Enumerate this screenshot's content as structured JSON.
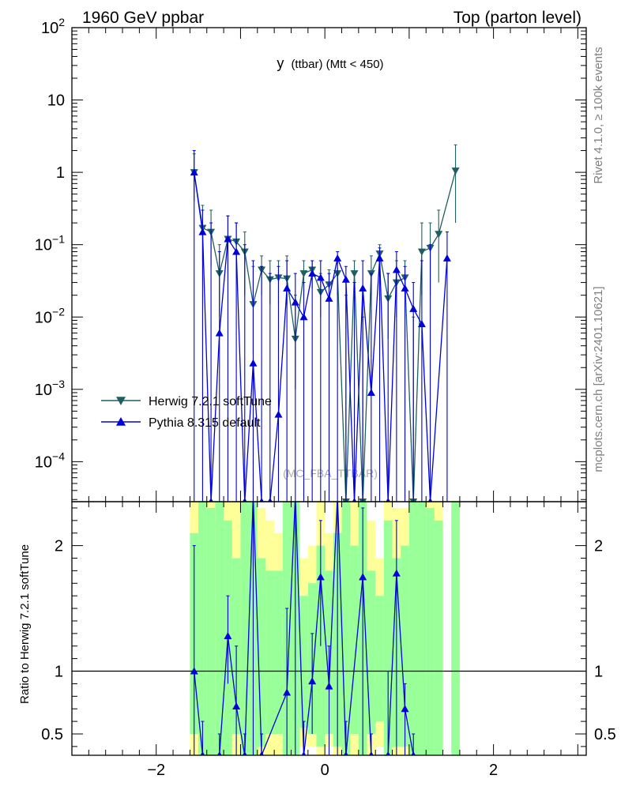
{
  "header": {
    "left": "1960 GeV ppbar",
    "right": "Top (parton level)"
  },
  "side": {
    "rivet": "Rivet 4.1.0, ≥ 100k events",
    "mcplots": "mcplots.cern.ch [arXiv:2401.10621]"
  },
  "colors": {
    "herwig": "#1f5f5f",
    "pythia": "#0000dd",
    "band_yellow": "#ffff99",
    "band_green": "#99ff99"
  },
  "chart_data": [
    {
      "type": "line",
      "name": "main",
      "title": "y (ttbar) (Mtt < 450)",
      "title_main": "y",
      "title_rest": "(ttbar) (Mtt < 450)",
      "watermark": "(MC_FBA_TTBAR)",
      "xlim": [
        -3.0,
        3.1
      ],
      "ylim_log": [
        2.8e-05,
        100
      ],
      "yscale": "log",
      "yticks": [
        {
          "value": 100,
          "base": "10",
          "exp": "2"
        },
        {
          "value": 10,
          "base": "10",
          "exp": ""
        },
        {
          "value": 1,
          "base": "1",
          "exp": ""
        },
        {
          "value": 0.1,
          "base": "10",
          "exp": "−1"
        },
        {
          "value": 0.01,
          "base": "10",
          "exp": "−2"
        },
        {
          "value": 0.001,
          "base": "10",
          "exp": "−3"
        },
        {
          "value": 0.0001,
          "base": "10",
          "exp": "−4"
        }
      ],
      "legend": [
        "Herwig 7.2.1 softTune",
        "Pythia 8.315 default"
      ],
      "legend_position": "lower-left",
      "series": [
        {
          "name": "Herwig 7.2.1 softTune",
          "marker": "triangle-down",
          "points": [
            [
              -1.55,
              1.0,
              1.8,
              0.4
            ],
            [
              -1.45,
              0.17,
              0.35,
              0.06
            ],
            [
              -1.35,
              0.15,
              0.3,
              0.05
            ],
            [
              -1.25,
              0.04,
              0.1,
              0.01
            ],
            [
              -1.15,
              0.12,
              0.25,
              0.04
            ],
            [
              -1.05,
              0.11,
              0.2,
              0.04
            ],
            [
              -0.95,
              0.08,
              0.15,
              0.02
            ],
            [
              -0.85,
              0.015,
              0.05,
              0.003
            ],
            [
              -0.75,
              0.045,
              0.07,
              0.02
            ],
            [
              -0.65,
              0.033,
              0.06,
              0.015
            ],
            [
              -0.55,
              0.035,
              0.06,
              0.015
            ],
            [
              -0.45,
              0.034,
              0.07,
              0.015
            ],
            [
              -0.35,
              0.005,
              0.02,
              0.001
            ],
            [
              -0.25,
              0.04,
              0.06,
              0.02
            ],
            [
              -0.15,
              0.045,
              0.06,
              0.025
            ],
            [
              -0.05,
              0.022,
              0.04,
              0.01
            ],
            [
              0.05,
              0.028,
              0.045,
              0.015
            ],
            [
              0.15,
              0.04,
              0.06,
              0.02
            ],
            [
              0.25,
              2.8e-05,
              0.02,
              2.8e-05
            ],
            [
              0.35,
              0.04,
              0.06,
              0.02
            ],
            [
              0.45,
              2.8e-05,
              0.01,
              2.8e-05
            ],
            [
              0.55,
              0.04,
              0.07,
              0.02
            ],
            [
              0.65,
              0.075,
              0.1,
              0.04
            ],
            [
              0.75,
              0.018,
              0.04,
              0.005
            ],
            [
              0.85,
              0.03,
              0.06,
              0.01
            ],
            [
              0.95,
              0.035,
              0.06,
              0.015
            ],
            [
              1.05,
              2.8e-05,
              0.01,
              2.8e-05
            ],
            [
              1.15,
              0.08,
              0.2,
              0.02
            ],
            [
              1.25,
              0.09,
              0.2,
              0.02
            ],
            [
              1.35,
              0.14,
              0.3,
              0.03
            ],
            [
              1.55,
              1.05,
              2.4,
              0.2
            ]
          ]
        },
        {
          "name": "Pythia 8.315 default",
          "marker": "triangle-up",
          "points": [
            [
              -1.55,
              1.0,
              2.0,
              2.8e-05
            ],
            [
              -1.45,
              0.15,
              0.3,
              2.8e-05
            ],
            [
              -1.35,
              2.8e-05,
              0.2,
              2.8e-05
            ],
            [
              -1.25,
              0.006,
              0.08,
              2.8e-05
            ],
            [
              -1.15,
              0.12,
              0.25,
              2.8e-05
            ],
            [
              -1.05,
              0.08,
              0.2,
              2.8e-05
            ],
            [
              -0.95,
              2.8e-05,
              0.1,
              2.8e-05
            ],
            [
              -0.85,
              0.0023,
              0.06,
              2.8e-05
            ],
            [
              -0.75,
              2.8e-05,
              0.05,
              2.8e-05
            ],
            [
              -0.65,
              2.8e-05,
              0.04,
              2.8e-05
            ],
            [
              -0.55,
              0.00045,
              0.05,
              2.8e-05
            ],
            [
              -0.45,
              0.025,
              0.06,
              2.8e-05
            ],
            [
              -0.35,
              0.016,
              0.04,
              2.8e-05
            ],
            [
              -0.25,
              0.01,
              0.03,
              2.8e-05
            ],
            [
              -0.15,
              0.04,
              0.06,
              2.8e-05
            ],
            [
              -0.05,
              0.035,
              0.06,
              2.8e-05
            ],
            [
              0.05,
              0.018,
              0.04,
              2.8e-05
            ],
            [
              0.15,
              0.065,
              0.08,
              2.8e-05
            ],
            [
              0.25,
              0.033,
              0.05,
              2.8e-05
            ],
            [
              0.35,
              2.8e-05,
              0.03,
              2.8e-05
            ],
            [
              0.45,
              0.025,
              0.06,
              2.8e-05
            ],
            [
              0.55,
              0.0009,
              0.04,
              2.8e-05
            ],
            [
              0.65,
              0.065,
              0.09,
              2.8e-05
            ],
            [
              0.75,
              2.8e-05,
              0.04,
              2.8e-05
            ],
            [
              0.85,
              0.045,
              0.08,
              2.8e-05
            ],
            [
              0.95,
              0.025,
              0.05,
              2.8e-05
            ],
            [
              1.05,
              0.013,
              0.03,
              2.8e-05
            ],
            [
              1.15,
              0.008,
              0.06,
              2.8e-05
            ],
            [
              1.25,
              2.8e-05,
              0.1,
              2.8e-05
            ],
            [
              1.45,
              0.065,
              0.15,
              2.8e-05
            ]
          ]
        }
      ]
    },
    {
      "type": "line",
      "name": "ratio",
      "ylabel": "Ratio to Herwig 7.2.1 softTune",
      "xlim": [
        -3.0,
        3.1
      ],
      "ylim": [
        0.33,
        2.35
      ],
      "xticks": [
        {
          "value": -2,
          "label": "−2"
        },
        {
          "value": 0,
          "label": "0"
        },
        {
          "value": 2,
          "label": "2"
        }
      ],
      "yticks": [
        {
          "value": 0.5,
          "label": "0.5"
        },
        {
          "value": 1,
          "label": "1"
        },
        {
          "value": 2,
          "label": "2"
        }
      ],
      "reference_line": 1.0,
      "bands": [
        [
          -1.55,
          0.5,
          2.1,
          0.3,
          2.4
        ],
        [
          -1.45,
          0.3,
          2.4,
          0.3,
          2.4
        ],
        [
          -1.35,
          0.3,
          2.3,
          0.3,
          2.4
        ],
        [
          -1.25,
          0.3,
          2.4,
          0.3,
          2.4
        ],
        [
          -1.15,
          0.3,
          2.2,
          0.3,
          2.4
        ],
        [
          -1.05,
          0.5,
          1.9,
          0.3,
          2.4
        ],
        [
          -0.95,
          0.3,
          2.4,
          0.3,
          2.4
        ],
        [
          -0.85,
          0.3,
          2.4,
          0.3,
          2.4
        ],
        [
          -0.75,
          0.4,
          1.9,
          0.3,
          2.3
        ],
        [
          -0.65,
          0.5,
          1.8,
          0.3,
          2.2
        ],
        [
          -0.55,
          0.5,
          1.8,
          0.3,
          2.1
        ],
        [
          -0.45,
          0.3,
          2.4,
          0.3,
          2.4
        ],
        [
          -0.35,
          0.3,
          2.4,
          0.3,
          2.4
        ],
        [
          -0.25,
          0.55,
          1.6,
          0.4,
          1.9
        ],
        [
          -0.15,
          0.5,
          1.7,
          0.4,
          2.0
        ],
        [
          -0.05,
          0.4,
          2.0,
          0.3,
          2.4
        ],
        [
          0.05,
          0.5,
          1.8,
          0.4,
          2.1
        ],
        [
          0.15,
          0.4,
          2.1,
          0.3,
          2.4
        ],
        [
          0.25,
          0.3,
          2.4,
          0.3,
          2.4
        ],
        [
          0.35,
          0.5,
          2.0,
          0.3,
          2.4
        ],
        [
          0.45,
          0.3,
          2.4,
          0.3,
          2.4
        ],
        [
          0.55,
          0.5,
          1.8,
          0.3,
          2.2
        ],
        [
          0.65,
          0.6,
          1.6,
          0.4,
          1.9
        ],
        [
          0.75,
          0.3,
          2.2,
          0.3,
          2.4
        ],
        [
          0.85,
          0.4,
          1.9,
          0.3,
          2.3
        ],
        [
          0.95,
          0.4,
          2.0,
          0.3,
          2.3
        ],
        [
          1.05,
          0.3,
          2.4,
          0.3,
          2.4
        ],
        [
          1.15,
          0.3,
          2.4,
          0.3,
          2.4
        ],
        [
          1.25,
          0.3,
          2.3,
          0.3,
          2.4
        ],
        [
          1.35,
          0.3,
          2.2,
          0.3,
          2.4
        ],
        [
          1.55,
          0.3,
          2.4,
          0.3,
          2.4
        ]
      ],
      "series": [
        {
          "name": "Pythia 8.315 default",
          "marker": "triangle-up",
          "points": [
            [
              -1.55,
              1.0,
              2.0,
              0.33
            ],
            [
              -1.45,
              0.33,
              0.6,
              0.33
            ],
            [
              -1.25,
              0.33,
              0.5,
              0.33
            ],
            [
              -1.15,
              1.28,
              1.6,
              0.9
            ],
            [
              -1.05,
              0.72,
              1.2,
              0.33
            ],
            [
              -0.95,
              0.33,
              0.5,
              0.33
            ],
            [
              -0.85,
              2.4,
              2.4,
              0.33
            ],
            [
              -0.75,
              0.33,
              0.5,
              0.33
            ],
            [
              -0.45,
              0.83,
              1.5,
              0.33
            ],
            [
              -0.35,
              2.4,
              2.4,
              0.33
            ],
            [
              -0.25,
              0.33,
              0.6,
              0.33
            ],
            [
              -0.15,
              0.92,
              1.3,
              0.5
            ],
            [
              -0.05,
              1.75,
              2.2,
              1.2
            ],
            [
              0.05,
              0.88,
              1.2,
              0.33
            ],
            [
              0.15,
              2.4,
              2.4,
              0.33
            ],
            [
              0.25,
              0.33,
              0.6,
              0.33
            ],
            [
              0.45,
              1.75,
              2.3,
              0.33
            ],
            [
              0.55,
              0.33,
              0.5,
              0.33
            ],
            [
              0.75,
              0.33,
              1.0,
              0.33
            ],
            [
              0.85,
              1.78,
              2.2,
              0.33
            ],
            [
              0.95,
              0.7,
              0.9,
              0.33
            ],
            [
              1.05,
              0.33,
              0.5,
              0.33
            ]
          ]
        }
      ]
    }
  ]
}
